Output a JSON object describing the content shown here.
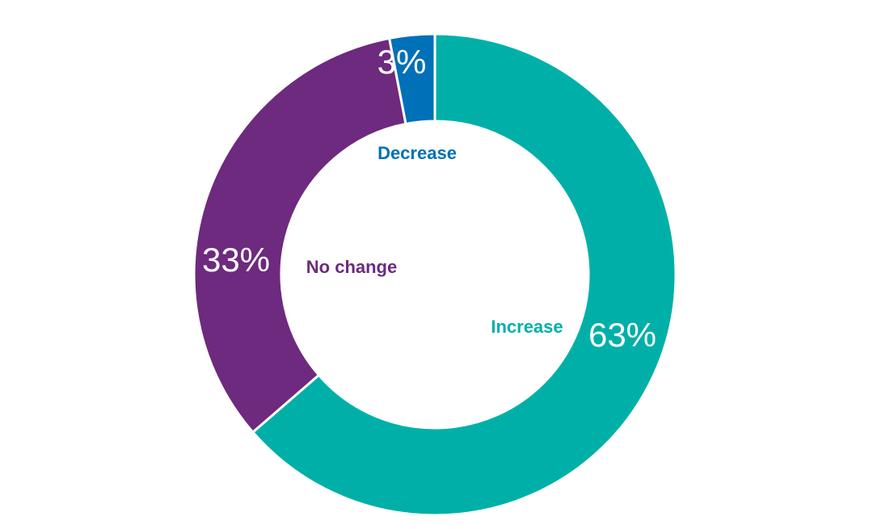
{
  "chart_data": {
    "type": "donut",
    "categories": [
      "Increase",
      "No change",
      "Decrease"
    ],
    "values": [
      63,
      33,
      3
    ],
    "value_labels": [
      "63%",
      "33%",
      "3%"
    ],
    "colors": [
      "#00b0a8",
      "#6d2a7e",
      "#0070b8"
    ]
  }
}
